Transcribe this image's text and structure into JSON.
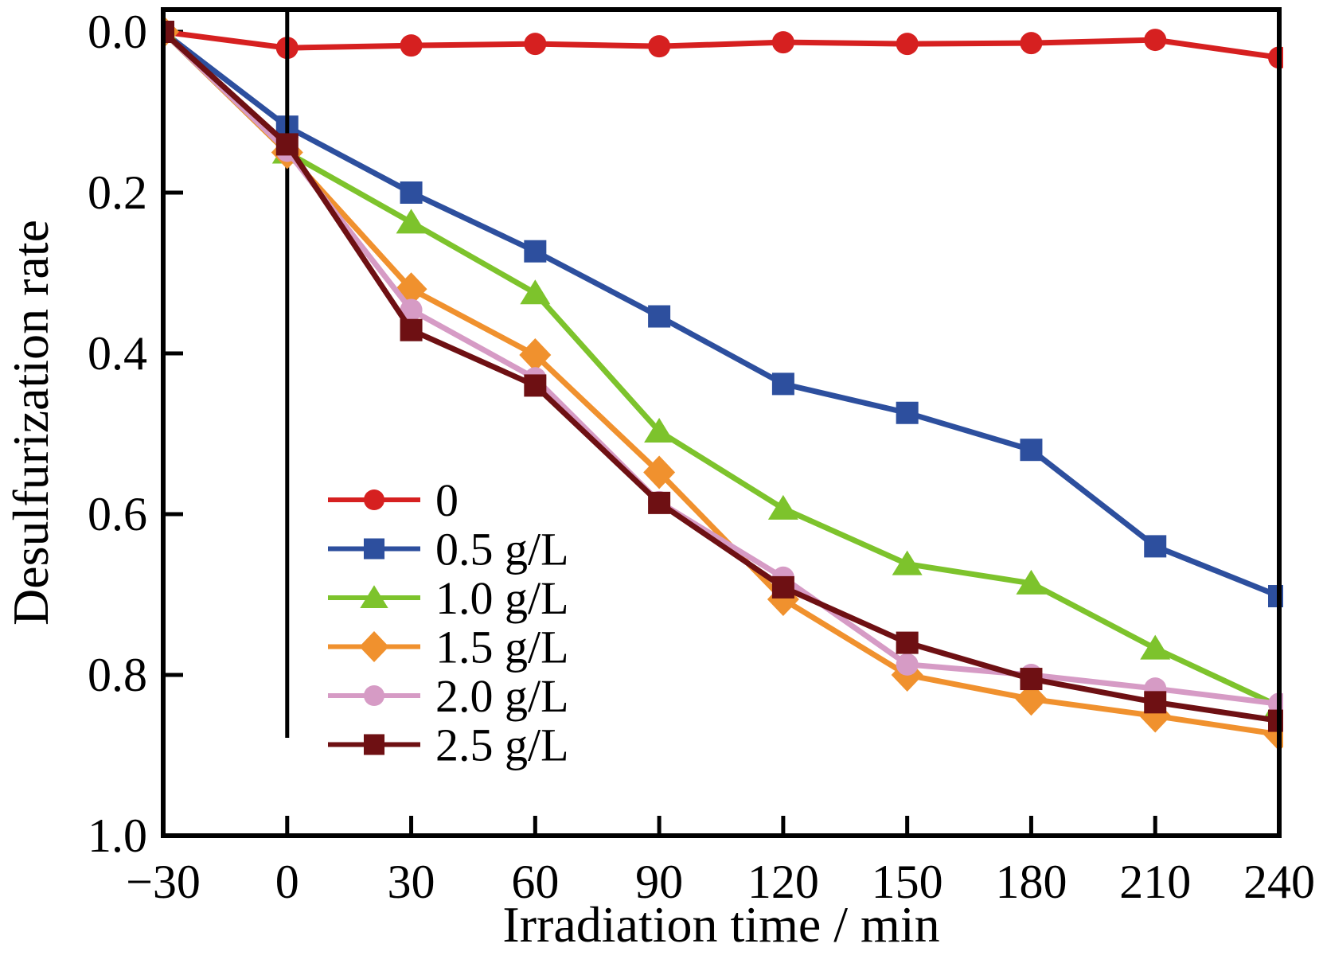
{
  "figure": {
    "background": "#ffffff",
    "frame_color": "#000000",
    "vline_color": "#000000"
  },
  "chart_data": {
    "type": "line",
    "title": "",
    "xlabel": "Irradiation time / min",
    "ylabel": "Desulfurization rate",
    "x": [
      -30,
      0,
      30,
      60,
      90,
      120,
      150,
      180,
      210,
      240
    ],
    "xtick_labels": [
      "−30",
      "0",
      "30",
      "60",
      "90",
      "120",
      "150",
      "180",
      "210",
      "240"
    ],
    "yticks": [
      0.0,
      0.2,
      0.4,
      0.6,
      0.8,
      1.0
    ],
    "ytick_labels": [
      "0.0",
      "0.2",
      "0.4",
      "0.6",
      "0.8",
      "1.0"
    ],
    "xlim": [
      -30,
      240
    ],
    "ylim": [
      0.0,
      1.0
    ],
    "y_axis_inverted": true,
    "grid": false,
    "legend_position": "center-left-inside",
    "vertical_line_x": 0,
    "series": [
      {
        "name": "0",
        "color": "#d62020",
        "marker": "circle",
        "values": [
          0.0,
          0.02,
          0.017,
          0.015,
          0.018,
          0.013,
          0.015,
          0.014,
          0.01,
          0.032
        ]
      },
      {
        "name": "0.5 g/L",
        "color": "#2d4f9e",
        "marker": "square",
        "values": [
          0.0,
          0.118,
          0.2,
          0.273,
          0.354,
          0.438,
          0.474,
          0.52,
          0.64,
          0.702
        ]
      },
      {
        "name": "1.0 g/L",
        "color": "#7dc32c",
        "marker": "triangle",
        "values": [
          0.0,
          0.15,
          0.237,
          0.325,
          0.497,
          0.593,
          0.662,
          0.686,
          0.767,
          0.839
        ]
      },
      {
        "name": "1.5 g/L",
        "color": "#f0912e",
        "marker": "diamond",
        "values": [
          0.0,
          0.15,
          0.32,
          0.402,
          0.548,
          0.706,
          0.8,
          0.83,
          0.851,
          0.874
        ]
      },
      {
        "name": "2.0 g/L",
        "color": "#d69bc5",
        "marker": "circle",
        "values": [
          0.0,
          0.148,
          0.346,
          0.431,
          0.585,
          0.679,
          0.787,
          0.8,
          0.817,
          0.836
        ]
      },
      {
        "name": "2.5 g/L",
        "color": "#6e1013",
        "marker": "square",
        "values": [
          0.0,
          0.14,
          0.371,
          0.44,
          0.586,
          0.691,
          0.76,
          0.805,
          0.834,
          0.857
        ]
      }
    ]
  }
}
